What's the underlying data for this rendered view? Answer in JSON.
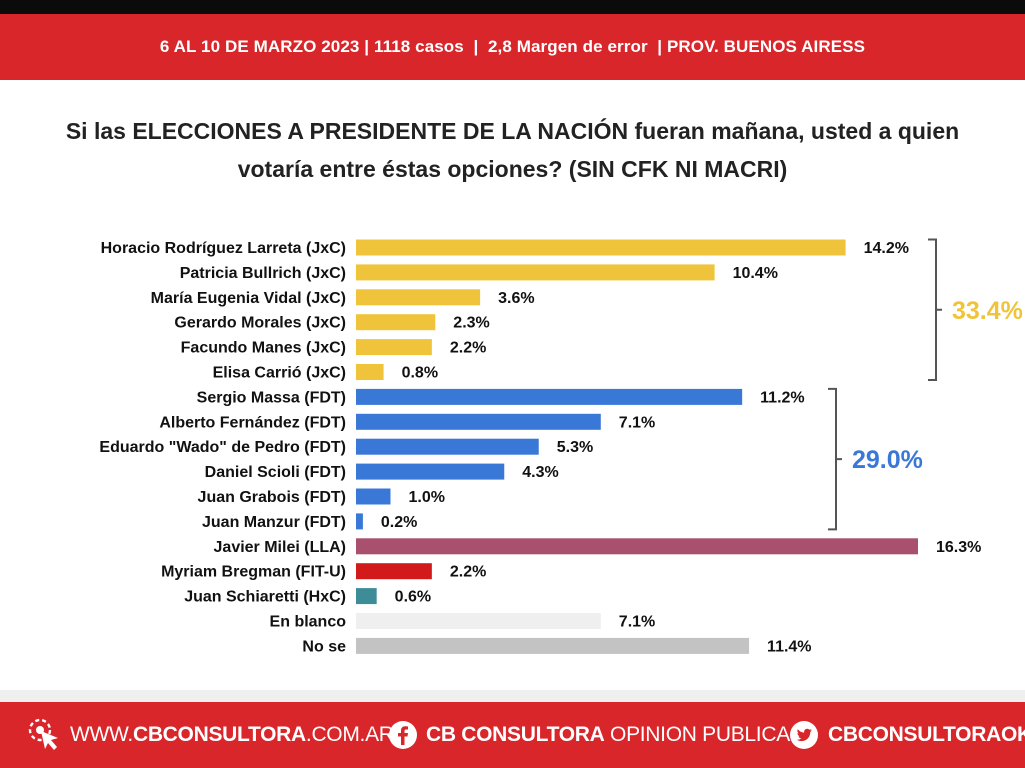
{
  "header": {
    "text": "6 AL 10 DE MARZO 2023 | 1118 casos  |  2,8 Margen de error  | PROV. BUENOS AIRESS"
  },
  "question": {
    "line1": "Si las ELECCIONES A PRESIDENTE DE LA NACIÓN fueran mañana, usted a quien",
    "line2": "votaría entre éstas opciones? (SIN CFK NI MACRI)"
  },
  "colors": {
    "header_red": "#d9262b",
    "jxc": "#f0c43a",
    "fdt": "#3a78d8",
    "lla": "#a8506e",
    "fitu": "#d31a1a",
    "hxc": "#3e8c98",
    "blanco": "#efefef",
    "nose": "#c3c3c3",
    "bracket": "#555555"
  },
  "chart_data": {
    "type": "bar",
    "orientation": "horizontal",
    "value_suffix": "%",
    "categories": [
      "Horacio Rodríguez Larreta (JxC)",
      "Patricia Bullrich (JxC)",
      "María Eugenia Vidal  (JxC)",
      "Gerardo Morales  (JxC)",
      "Facundo Manes  (JxC)",
      "Elisa Carrió  (JxC)",
      "Sergio Massa (FDT)",
      "Alberto Fernández (FDT)",
      "Eduardo \"Wado\" de Pedro (FDT)",
      "Daniel Scioli (FDT)",
      "Juan Grabois (FDT)",
      "Juan Manzur (FDT)",
      "Javier Milei (LLA)",
      "Myriam Bregman (FIT-U)",
      "Juan Schiaretti (HxC)",
      "En blanco",
      "No se"
    ],
    "values": [
      14.2,
      10.4,
      3.6,
      2.3,
      2.2,
      0.8,
      11.2,
      7.1,
      5.3,
      4.3,
      1.0,
      0.2,
      16.3,
      2.2,
      0.6,
      7.1,
      11.4
    ],
    "value_labels": [
      "14.2%",
      "10.4%",
      "3.6%",
      "2.3%",
      "2.2%",
      "0.8%",
      "11.2%",
      "7.1%",
      "5.3%",
      "4.3%",
      "1.0%",
      "0.2%",
      "16.3%",
      "2.2%",
      "0.6%",
      "7.1%",
      "11.4%"
    ],
    "bar_groups": [
      "jxc",
      "jxc",
      "jxc",
      "jxc",
      "jxc",
      "jxc",
      "fdt",
      "fdt",
      "fdt",
      "fdt",
      "fdt",
      "fdt",
      "lla",
      "fitu",
      "hxc",
      "blanco",
      "nose"
    ],
    "xlim": [
      0,
      16.3
    ],
    "grid": false,
    "groups": [
      {
        "key": "jxc",
        "total_label": "33.4%",
        "first": 0,
        "last": 5,
        "color": "#f0c43a"
      },
      {
        "key": "fdt",
        "total_label": "29.0%",
        "first": 6,
        "last": 11,
        "color": "#3a78d8"
      }
    ]
  },
  "footer": {
    "web": {
      "prefix": "WWW.",
      "bold": "CBCONSULTORA",
      "suffix": ".COM.AR",
      "icon": "cursor-click-icon"
    },
    "facebook": {
      "bold": "CB CONSULTORA",
      "light": " OPINION PUBLICA",
      "icon": "facebook-icon"
    },
    "twitter": {
      "bold": "CBCONSULTORAOK",
      "icon": "twitter-icon"
    }
  }
}
